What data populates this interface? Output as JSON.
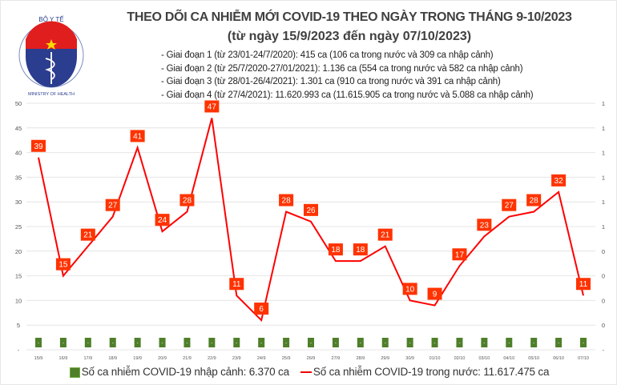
{
  "logo": {
    "text_top": "BỘ Y TẾ",
    "text_bottom": "MINISTRY OF HEALTH"
  },
  "title": "THEO DÕI CA NHIỄM MỚI COVID-19 THEO NGÀY TRONG THÁNG 9-10/2023",
  "subtitle": "(từ ngày 15/9/2023 đến ngày 07/10/2023)",
  "notes": [
    "- Giai đoạn 1 (từ 23/01-24/7/2020): 415 ca (106 ca trong nước và 309 ca nhập cảnh)",
    "- Giai đoạn 2 (từ 25/7/2020-27/01/2021): 1.136 ca (554 ca trong nước và 582 ca nhập cảnh)",
    "- Giai đoạn 3 (từ 28/01-26/4/2021): 1.301 ca (910 ca trong nước và 391 ca nhập cảnh)",
    "- Giai đoạn 4 (từ 27/4/2021): 11.620.993 ca (11.615.905 ca trong nước và 5.088 ca nhập cảnh)"
  ],
  "chart_data": {
    "type": "bar+line",
    "categories": [
      "15/9",
      "16/9",
      "17/9",
      "18/9",
      "19/9",
      "20/9",
      "21/9",
      "22/9",
      "23/9",
      "24/9",
      "25/9",
      "26/9",
      "27/9",
      "28/9",
      "29/9",
      "30/9",
      "01/10",
      "02/10",
      "03/10",
      "04/10",
      "05/10",
      "06/10",
      "07/10"
    ],
    "series": [
      {
        "name": "Số ca nhiễm COVID-19 nhập cảnh: 6.370 ca",
        "type": "bar",
        "axis": "right",
        "values": [
          0,
          0,
          0,
          0,
          0,
          0,
          0,
          0,
          0,
          0,
          0,
          0,
          0,
          0,
          0,
          0,
          0,
          0,
          0,
          0,
          0,
          0,
          0
        ],
        "data_label": "-",
        "color": "#4f7f2a"
      },
      {
        "name": "Số ca nhiễm COVID-19 trong nước: 11.617.475 ca",
        "type": "line",
        "axis": "left",
        "values": [
          39,
          15,
          21,
          27,
          41,
          24,
          28,
          47,
          11,
          6,
          28,
          26,
          18,
          18,
          21,
          10,
          9,
          17,
          23,
          27,
          28,
          32,
          11
        ],
        "color": "#ff0000",
        "label_bg": "#ff3300"
      }
    ],
    "left_axis": {
      "ylim": [
        0,
        50
      ],
      "ticks": [
        "-",
        "5",
        "10",
        "15",
        "20",
        "25",
        "30",
        "35",
        "40",
        "45",
        "50"
      ]
    },
    "right_axis": {
      "ticks": [
        "-",
        "0",
        "0",
        "0",
        "0",
        "1",
        "1",
        "1",
        "1",
        "1",
        "1"
      ]
    },
    "grid": true,
    "legend_position": "bottom"
  }
}
